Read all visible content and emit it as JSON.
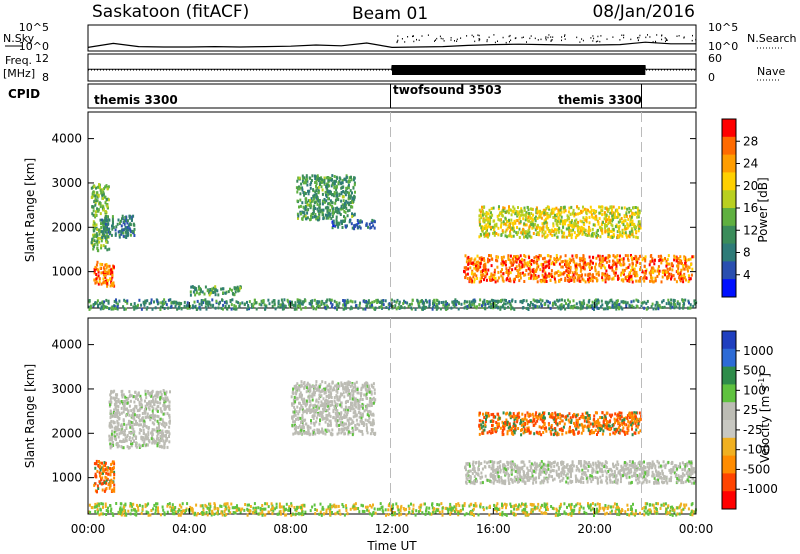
{
  "header": {
    "station": "Saskatoon (fitACF)",
    "beam": "Beam 01",
    "date": "08/Jan/2016"
  },
  "colors": {
    "scatter_base": "#1f3fbf",
    "ground_scatter": "#bdbdb6",
    "dashed_line": "#bbbbbb"
  },
  "chart_data": [
    {
      "type": "line",
      "panel": "nsky-nsearch",
      "left_label": "N.Sky",
      "right_label": "N.Search",
      "left_ticks": [
        "10^5",
        "10^0"
      ],
      "right_ticks": [
        "10^5",
        "10^0"
      ],
      "x": [
        0,
        1,
        2,
        3,
        4,
        5,
        6,
        7,
        8,
        9,
        10,
        11,
        12,
        13,
        14,
        15,
        16,
        17,
        18,
        19,
        20,
        21,
        22,
        23,
        24
      ],
      "series": [
        {
          "values_log10": [
            0.4,
            1.4,
            0.6,
            0.5,
            0.5,
            0.6,
            0.5,
            0.6,
            0.7,
            1.0,
            0.8,
            1.5,
            0.4,
            0.5,
            0.6,
            0.9,
            1.1,
            1.2,
            1.1,
            1.0,
            1.0,
            1.1,
            1.7,
            1.3,
            1.3
          ]
        }
      ]
    },
    {
      "type": "line",
      "panel": "freq-nave",
      "left_label": "Freq.",
      "left_unit": "[MHz]",
      "right_label": "Nave",
      "left_ticks": [
        "12",
        "8"
      ],
      "right_ticks": [
        "60",
        "0"
      ],
      "x": [
        0,
        6,
        11.99,
        12.0,
        21.99,
        22.0,
        24
      ],
      "series": [
        {
          "values": [
            10.4,
            10.4,
            10.4,
            11.2,
            11.2,
            10.4,
            10.4
          ]
        }
      ]
    },
    {
      "type": "table",
      "panel": "cpid",
      "label": "CPID",
      "segments": [
        {
          "name": "themis 3300",
          "start": 0,
          "end": 12
        },
        {
          "name": "twofsound 3503",
          "start": 12,
          "end": 22
        },
        {
          "name": "themis 3300",
          "start": 12,
          "end": 22
        }
      ]
    },
    {
      "type": "heatmap",
      "panel": "power",
      "ylabel": "Slant Range [km]",
      "yticks": [
        1000,
        2000,
        3000,
        4000
      ],
      "ylim": [
        180,
        4600
      ],
      "colorbar_label": "Power [dB]",
      "colorbar_ticks": [
        "28",
        "24",
        "20",
        "16",
        "12",
        "8",
        "4"
      ],
      "colorbar_colors": [
        "#ff0000",
        "#ff6a00",
        "#ff9d00",
        "#ffd000",
        "#b9d020",
        "#5fb040",
        "#3a8c5a",
        "#2e7b78",
        "#2a4fb0",
        "#0010ff"
      ],
      "clusters": [
        {
          "t": [
            0.2,
            1.0
          ],
          "r": [
            700,
            1250
          ],
          "level": 0.85
        },
        {
          "t": [
            0.1,
            0.8
          ],
          "r": [
            1500,
            3000
          ],
          "level": 0.45
        },
        {
          "t": [
            0.5,
            1.8
          ],
          "r": [
            1800,
            2300
          ],
          "level": 0.25
        },
        {
          "t": [
            8.2,
            10.5
          ],
          "r": [
            2200,
            3200
          ],
          "level": 0.35
        },
        {
          "t": [
            9.6,
            11.3
          ],
          "r": [
            2000,
            2200
          ],
          "level": 0.2
        },
        {
          "t": [
            14.8,
            23.9
          ],
          "r": [
            800,
            1400
          ],
          "level": 0.85
        },
        {
          "t": [
            15.4,
            21.8
          ],
          "r": [
            1800,
            2500
          ],
          "level": 0.6
        },
        {
          "t": [
            0,
            24
          ],
          "r": [
            180,
            400
          ],
          "level": 0.3
        },
        {
          "t": [
            4.0,
            6.0
          ],
          "r": [
            500,
            700
          ],
          "level": 0.35
        }
      ]
    },
    {
      "type": "heatmap",
      "panel": "velocity",
      "ylabel": "Slant Range [km]",
      "yticks": [
        1000,
        2000,
        3000,
        4000
      ],
      "ylim": [
        180,
        4600
      ],
      "xticks": [
        "00:00",
        "04:00",
        "08:00",
        "12:00",
        "16:00",
        "20:00",
        "00:00"
      ],
      "xlabel": "Time UT",
      "colorbar_label": "Velocity [m s",
      "colorbar_label_sup": "-1",
      "colorbar_label_end": "]",
      "colorbar_ticks": [
        "1000",
        "500",
        "100",
        "25",
        "-25",
        "-100",
        "-500",
        "-1000"
      ],
      "colorbar_colors": [
        "#1f3fbf",
        "#2d6bd6",
        "#2e8c4a",
        "#5fc23f",
        "#bcbcb4",
        "#c8c8c2",
        "#f0b020",
        "#ff8c00",
        "#ff4400",
        "#ff0000"
      ],
      "clusters": [
        {
          "t": [
            0.2,
            1.0
          ],
          "r": [
            700,
            1400
          ],
          "level": "orange"
        },
        {
          "t": [
            0.8,
            3.2
          ],
          "r": [
            1700,
            3000
          ],
          "level": "gray"
        },
        {
          "t": [
            8.0,
            11.3
          ],
          "r": [
            2000,
            3200
          ],
          "level": "gray"
        },
        {
          "t": [
            14.8,
            23.9
          ],
          "r": [
            900,
            1400
          ],
          "level": "gray"
        },
        {
          "t": [
            15.4,
            21.8
          ],
          "r": [
            2000,
            2500
          ],
          "level": "orange"
        },
        {
          "t": [
            0,
            24
          ],
          "r": [
            180,
            450
          ],
          "level": "greenorange"
        }
      ]
    }
  ]
}
